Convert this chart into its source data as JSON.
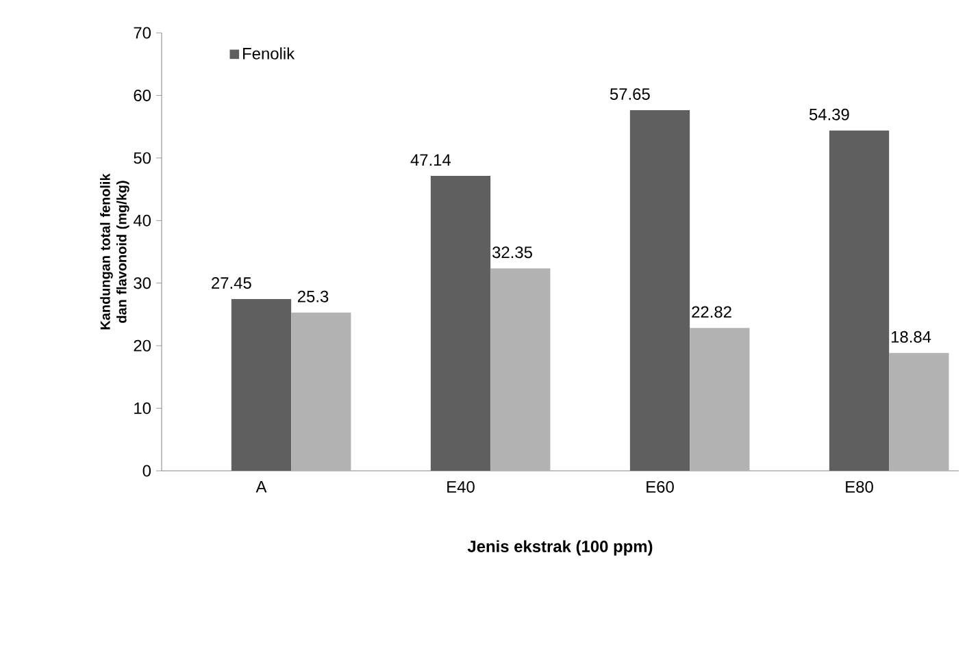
{
  "chart_data": {
    "type": "bar",
    "xlabel": "Jenis ekstrak (100 ppm)",
    "ylabel": "Kandungan total fenolik dan flavonoid (mg/kg)",
    "categories": [
      "A",
      "E40",
      "E60",
      "E80"
    ],
    "series": [
      {
        "name": "Fenolik",
        "color": "#5f5f5f",
        "values": [
          27.45,
          47.14,
          57.65,
          54.39
        ]
      },
      {
        "color": "#b2b2b2",
        "values": [
          25.3,
          32.35,
          22.82,
          18.84
        ]
      }
    ],
    "ylim": [
      0,
      70
    ],
    "yticks": [
      0,
      10,
      20,
      30,
      40,
      50,
      60,
      70
    ],
    "data_labels": true,
    "legend": "top left",
    "grid": false
  }
}
